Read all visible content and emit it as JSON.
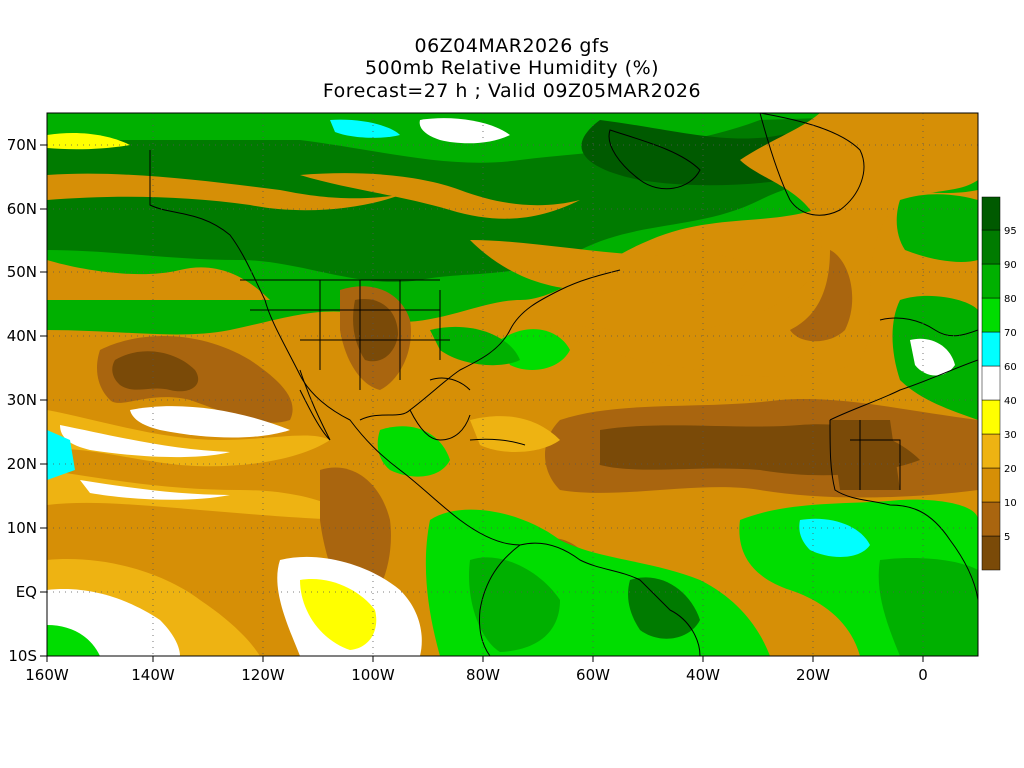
{
  "title": {
    "line1": "06Z04MAR2026 gfs",
    "line2": "500mb Relative Humidity (%)",
    "line3": "Forecast=27 h ; Valid 09Z05MAR2026"
  },
  "lat_labels": [
    "70N",
    "60N",
    "50N",
    "40N",
    "30N",
    "20N",
    "10N",
    "EQ",
    "10S"
  ],
  "lon_labels": [
    "160W",
    "140W",
    "120W",
    "100W",
    "80W",
    "60W",
    "40W",
    "20W",
    "0"
  ],
  "colorbar": {
    "levels": [
      "5",
      "10",
      "20",
      "30",
      "40",
      "60",
      "70",
      "80",
      "90",
      "95"
    ],
    "colors": [
      "#7a4a08",
      "#a9650f",
      "#d68f06",
      "#eeb312",
      "#ffff00",
      "#ffffff",
      "#00ffff",
      "#00dd00",
      "#00b000",
      "#007b00",
      "#005a00"
    ]
  },
  "palette": {
    "very_dry": "#7a4a08",
    "dry": "#a9650f",
    "orange": "#d68f06",
    "light_orange": "#eeb312",
    "yellow": "#ffff00",
    "white": "#ffffff",
    "cyan": "#00ffff",
    "green": "#00dd00",
    "mid_green": "#00b000",
    "dark_green": "#007b00"
  }
}
